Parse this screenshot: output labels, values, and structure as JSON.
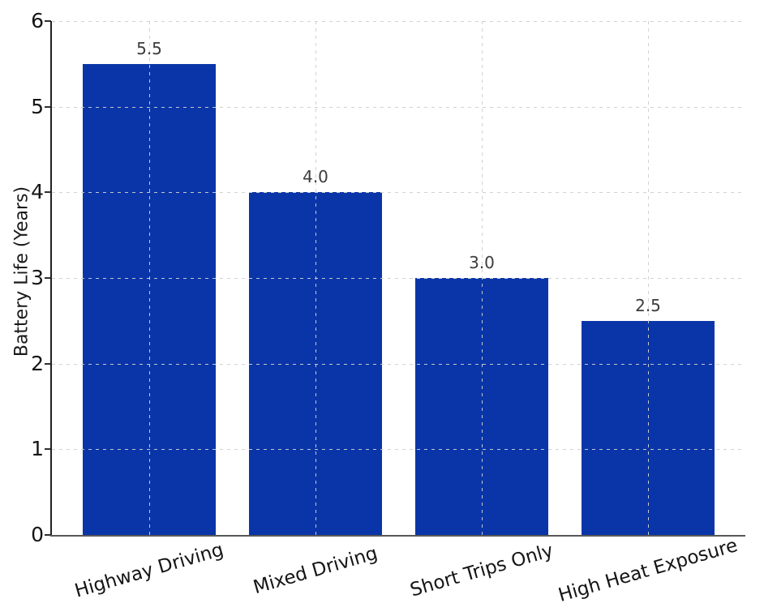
{
  "chart_data": {
    "type": "bar",
    "title": "",
    "xlabel": "",
    "ylabel": "Battery Life (Years)",
    "categories": [
      "Highway Driving",
      "Mixed Driving",
      "Short Trips Only",
      "High Heat Exposure"
    ],
    "values": [
      5.5,
      4.0,
      3.0,
      2.5
    ],
    "bar_labels": [
      "5.5",
      "4.0",
      "3.0",
      "2.5"
    ],
    "ylim": [
      0,
      6
    ],
    "yticks": [
      0,
      1,
      2,
      3,
      4,
      5,
      6
    ],
    "x_tick_rotation_deg": 16,
    "grid": {
      "visible": true,
      "style": "dashed",
      "axes": "both",
      "above_bars": true,
      "color": "#cfcfcf"
    },
    "legend": null,
    "bar_color": "#0a35a8",
    "bar_label_color": "#3c3c3c",
    "tick_label_color": "#151515",
    "background_color": "#ffffff"
  }
}
